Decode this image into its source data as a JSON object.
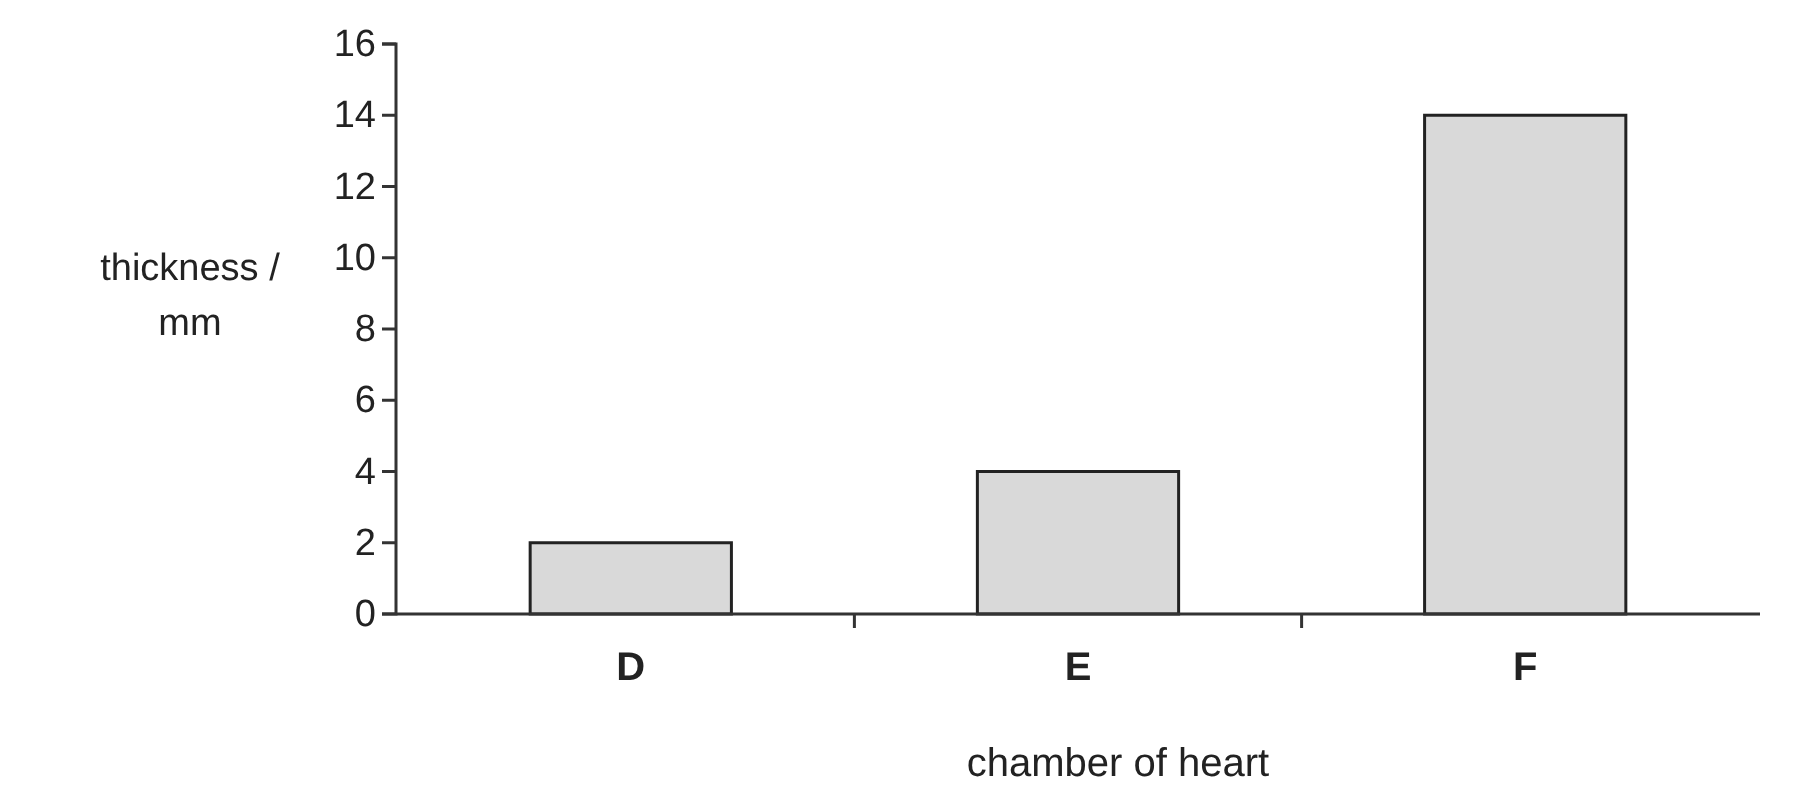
{
  "chart_data": {
    "type": "bar",
    "categories": [
      "D",
      "E",
      "F"
    ],
    "values": [
      2,
      4,
      14
    ],
    "color": "#d9d9d9",
    "ylim": [
      0,
      16
    ],
    "yticks": [
      0,
      2,
      4,
      6,
      8,
      10,
      12,
      14,
      16
    ],
    "xlabel": "chamber of heart",
    "ylabel": "thickness / mm",
    "grid": false
  }
}
